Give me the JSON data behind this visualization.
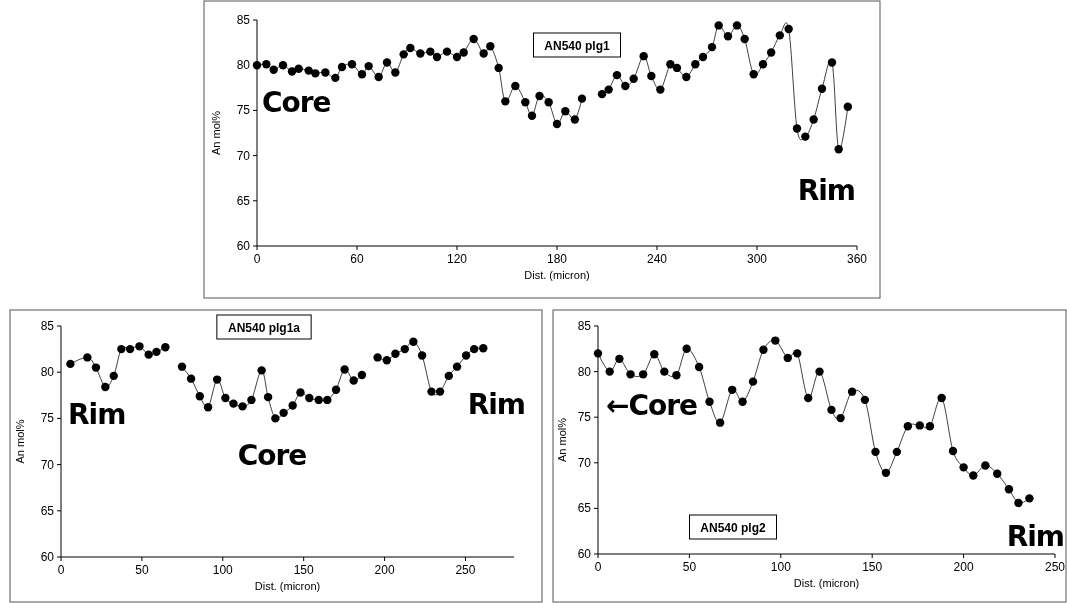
{
  "chart_data": [
    {
      "type": "line",
      "title": "AN540 plg1",
      "xlabel": "Dist. (micron)",
      "ylabel": "An mol%",
      "annotations": [
        "Core",
        "Rim"
      ],
      "xlim": [
        0,
        360
      ],
      "xticks": [
        0,
        60,
        120,
        180,
        240,
        300,
        360
      ],
      "ylim": [
        60,
        85
      ],
      "yticks": [
        60,
        65,
        70,
        75,
        80,
        85
      ],
      "grid": false,
      "marker": "circle",
      "line_style": "solid",
      "series": [
        {
          "color": "#000000",
          "x": [
            0,
            5.6,
            10,
            15.6,
            21,
            25,
            31,
            35,
            41,
            47,
            51,
            57,
            63,
            67,
            73,
            78,
            83,
            88,
            92,
            98,
            104,
            108,
            114,
            120,
            124,
            130,
            136,
            140,
            145,
            149,
            155,
            161,
            165,
            169.5,
            175,
            180,
            185,
            190.7,
            195,
            201,
            207,
            211,
            216,
            221,
            226,
            232,
            236.6,
            242,
            248,
            252,
            257.6,
            263,
            267.6,
            273,
            277,
            282.6,
            288,
            292.6,
            298,
            303.6,
            308.5,
            313.7,
            319,
            324,
            329,
            334,
            339,
            345,
            349,
            354.5
          ],
          "values": [
            80.0,
            80.1,
            79.5,
            80.0,
            79.3,
            79.6,
            79.4,
            79.1,
            79.2,
            78.6,
            79.8,
            80.1,
            79.0,
            79.9,
            78.7,
            80.3,
            79.2,
            81.2,
            81.9,
            81.3,
            81.5,
            80.9,
            81.5,
            80.9,
            81.4,
            82.9,
            81.3,
            82.1,
            79.7,
            76.0,
            77.7,
            75.9,
            74.4,
            76.6,
            75.9,
            73.5,
            74.9,
            74.0,
            76.3,
            null,
            76.8,
            77.3,
            78.9,
            77.7,
            78.5,
            81.0,
            78.8,
            77.3,
            80.1,
            79.7,
            78.7,
            80.1,
            80.9,
            82.0,
            84.4,
            83.2,
            84.4,
            82.9,
            79.0,
            80.1,
            81.4,
            83.3,
            84.0,
            73.0,
            72.1,
            74.0,
            77.4,
            80.3,
            70.7,
            75.4
          ]
        }
      ]
    },
    {
      "type": "line",
      "title": "AN540 plg1a",
      "xlabel": "Dist. (micron)",
      "ylabel": "An mol%",
      "annotations": [
        "Rim",
        "Core",
        "Rim"
      ],
      "xlim": [
        0,
        280
      ],
      "xticks": [
        0,
        50,
        100,
        150,
        200,
        250
      ],
      "ylim": [
        60,
        85
      ],
      "yticks": [
        60,
        65,
        70,
        75,
        80,
        85
      ],
      "grid": false,
      "marker": "circle",
      "line_style": "solid",
      "series": [
        {
          "color": "#000000",
          "x": [
            5.8,
            16.3,
            21.6,
            27.4,
            32.6,
            37.3,
            42.7,
            48.5,
            54.2,
            59,
            64.5,
            70,
            74.8,
            80.4,
            85.8,
            90.9,
            96.5,
            101.6,
            106.6,
            112.2,
            117.7,
            124,
            128,
            132.5,
            137.6,
            143.2,
            148,
            153.5,
            159.3,
            164.6,
            170,
            175.3,
            180.9,
            186,
            191,
            195.7,
            201.4,
            206.7,
            212.5,
            217.8,
            223.2,
            229,
            234.3,
            239.7,
            244.8,
            250.4,
            255.4,
            261
          ],
          "values": [
            80.9,
            81.6,
            80.5,
            78.4,
            79.6,
            82.5,
            82.5,
            82.8,
            81.9,
            82.2,
            82.7,
            null,
            80.6,
            79.3,
            77.4,
            76.2,
            79.2,
            77.2,
            76.6,
            76.3,
            77.0,
            80.2,
            77.3,
            75.0,
            75.6,
            76.4,
            77.8,
            77.2,
            77.0,
            77.0,
            78.1,
            80.3,
            79.1,
            79.7,
            null,
            81.6,
            81.3,
            82.0,
            82.5,
            83.3,
            81.8,
            77.9,
            77.9,
            79.6,
            80.6,
            81.8,
            82.5,
            82.6
          ]
        }
      ]
    },
    {
      "type": "line",
      "title": "AN540 plg2",
      "xlabel": "Dist. (micron)",
      "ylabel": "An mol%",
      "annotations": [
        "←Core",
        "Rim"
      ],
      "xlim": [
        0,
        250
      ],
      "xticks": [
        0,
        50,
        100,
        150,
        200,
        250
      ],
      "ylim": [
        60,
        85
      ],
      "yticks": [
        60,
        65,
        70,
        75,
        80,
        85
      ],
      "grid": false,
      "marker": "circle",
      "line_style": "solid",
      "series": [
        {
          "color": "#000000",
          "x": [
            0,
            6.4,
            11.7,
            17.8,
            24.7,
            30.8,
            36.3,
            42.9,
            48.5,
            55.3,
            61,
            66.8,
            73.4,
            79.1,
            84.8,
            90.5,
            97,
            103.8,
            109,
            115,
            121.2,
            127.7,
            132.7,
            139,
            146,
            151.8,
            157.5,
            163.5,
            169.5,
            176,
            181.6,
            188,
            194.2,
            200,
            205.3,
            211.9,
            218.4,
            224.8,
            230,
            236
          ],
          "values": [
            82.0,
            80.0,
            81.4,
            79.7,
            79.7,
            81.9,
            80.0,
            79.6,
            82.5,
            80.5,
            76.7,
            74.4,
            78.0,
            76.7,
            78.9,
            82.4,
            83.4,
            81.5,
            82.0,
            77.1,
            80.0,
            75.8,
            74.9,
            77.8,
            76.9,
            71.2,
            68.9,
            71.2,
            74.0,
            74.1,
            74.0,
            77.1,
            71.3,
            69.5,
            68.6,
            69.7,
            68.8,
            67.1,
            65.6,
            66.1
          ]
        }
      ]
    }
  ]
}
